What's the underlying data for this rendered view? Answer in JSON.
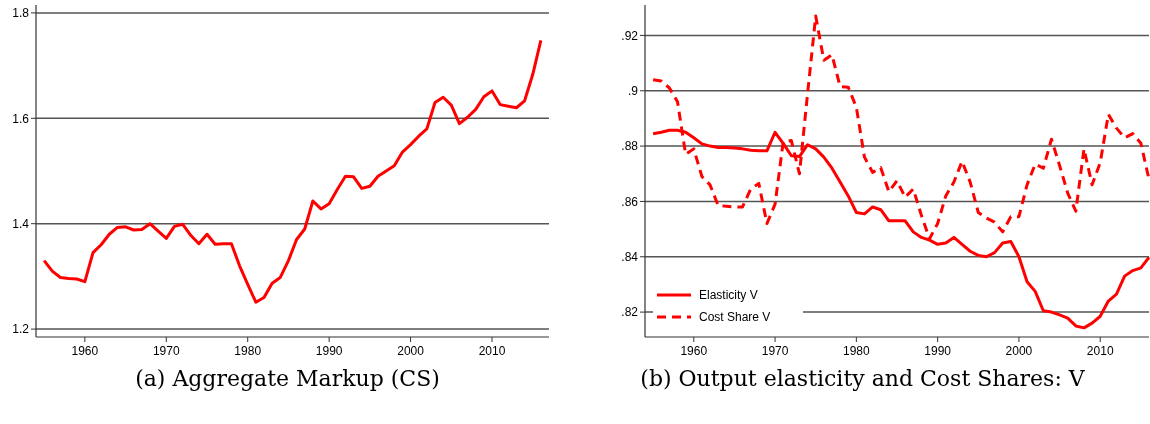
{
  "chart_data": [
    {
      "type": "line",
      "title": "(a) Aggregate Markup (CS)",
      "x": [
        1955,
        1956,
        1957,
        1958,
        1959,
        1960,
        1961,
        1962,
        1963,
        1964,
        1965,
        1966,
        1967,
        1968,
        1969,
        1970,
        1971,
        1972,
        1973,
        1974,
        1975,
        1976,
        1977,
        1978,
        1979,
        1980,
        1981,
        1982,
        1983,
        1984,
        1985,
        1986,
        1987,
        1988,
        1989,
        1990,
        1991,
        1992,
        1993,
        1994,
        1995,
        1996,
        1997,
        1998,
        1999,
        2000,
        2001,
        2002,
        2003,
        2004,
        2005,
        2006,
        2007,
        2008,
        2009,
        2010,
        2011,
        2012,
        2013,
        2014,
        2015,
        2016
      ],
      "series": [
        {
          "color": "#ff0000",
          "line_style": "solid",
          "values": [
            1.33,
            1.31,
            1.298,
            1.296,
            1.295,
            1.29,
            1.345,
            1.36,
            1.38,
            1.393,
            1.394,
            1.388,
            1.389,
            1.4,
            1.386,
            1.372,
            1.395,
            1.399,
            1.378,
            1.362,
            1.38,
            1.361,
            1.362,
            1.362,
            1.32,
            1.285,
            1.251,
            1.26,
            1.287,
            1.298,
            1.33,
            1.37,
            1.39,
            1.443,
            1.428,
            1.438,
            1.465,
            1.49,
            1.489,
            1.467,
            1.471,
            1.49,
            1.5,
            1.51,
            1.536,
            1.55,
            1.566,
            1.58,
            1.63,
            1.64,
            1.625,
            1.59,
            1.602,
            1.617,
            1.641,
            1.652,
            1.626,
            1.623,
            1.62,
            1.633,
            1.683,
            1.748
          ]
        }
      ],
      "xlim": [
        1954,
        2017
      ],
      "xticks": [
        1960,
        1970,
        1980,
        1990,
        2000,
        2010
      ],
      "ylim": [
        1.185,
        1.815
      ],
      "yticks": [
        1.2,
        1.4,
        1.6,
        1.8
      ],
      "grid": "y",
      "legend": false
    },
    {
      "type": "line",
      "title": "(b) Output elasticity and Cost Shares: V",
      "x": [
        1955,
        1956,
        1957,
        1958,
        1959,
        1960,
        1961,
        1962,
        1963,
        1964,
        1965,
        1966,
        1967,
        1968,
        1969,
        1970,
        1971,
        1972,
        1973,
        1974,
        1975,
        1976,
        1977,
        1978,
        1979,
        1980,
        1981,
        1982,
        1983,
        1984,
        1985,
        1986,
        1987,
        1988,
        1989,
        1990,
        1991,
        1992,
        1993,
        1994,
        1995,
        1996,
        1997,
        1998,
        1999,
        2000,
        2001,
        2002,
        2003,
        2004,
        2005,
        2006,
        2007,
        2008,
        2009,
        2010,
        2011,
        2012,
        2013,
        2014,
        2015,
        2016
      ],
      "series": [
        {
          "name": "Elasticity V",
          "color": "#ff0000",
          "line_style": "solid",
          "values": [
            0.8845,
            0.885,
            0.8857,
            0.8857,
            0.885,
            0.883,
            0.8808,
            0.88,
            0.8795,
            0.8795,
            0.8793,
            0.879,
            0.8785,
            0.8783,
            0.8783,
            0.885,
            0.881,
            0.8765,
            0.8762,
            0.8805,
            0.879,
            0.876,
            0.872,
            0.867,
            0.862,
            0.856,
            0.8555,
            0.858,
            0.857,
            0.853,
            0.853,
            0.853,
            0.849,
            0.847,
            0.846,
            0.8445,
            0.845,
            0.847,
            0.8445,
            0.842,
            0.8405,
            0.84,
            0.8415,
            0.845,
            0.8455,
            0.84,
            0.831,
            0.8275,
            0.8205,
            0.82,
            0.819,
            0.8178,
            0.815,
            0.8143,
            0.816,
            0.8185,
            0.824,
            0.8265,
            0.833,
            0.835,
            0.836,
            0.8398
          ]
        },
        {
          "name": "Cost Share V",
          "color": "#ff0000",
          "line_style": "dashed",
          "values": [
            0.904,
            0.9035,
            0.901,
            0.896,
            0.877,
            0.879,
            0.869,
            0.866,
            0.8585,
            0.8583,
            0.858,
            0.858,
            0.8645,
            0.8665,
            0.852,
            0.859,
            0.8815,
            0.882,
            0.87,
            0.899,
            0.927,
            0.911,
            0.913,
            0.9015,
            0.9013,
            0.894,
            0.876,
            0.8705,
            0.8722,
            0.8635,
            0.8675,
            0.8615,
            0.8645,
            0.855,
            0.8465,
            0.852,
            0.862,
            0.867,
            0.8745,
            0.867,
            0.856,
            0.854,
            0.8525,
            0.849,
            0.8545,
            0.8545,
            0.866,
            0.8735,
            0.872,
            0.8825,
            0.873,
            0.863,
            0.8565,
            0.879,
            0.866,
            0.874,
            0.8915,
            0.8865,
            0.883,
            0.8845,
            0.881,
            0.868
          ]
        }
      ],
      "xlim": [
        1954,
        2016
      ],
      "xticks": [
        1960,
        1970,
        1980,
        1990,
        2000,
        2010
      ],
      "ylim": [
        0.811,
        0.931
      ],
      "yticks": [
        {
          "value": 0.82,
          "label": ".82"
        },
        {
          "value": 0.84,
          "label": ".84"
        },
        {
          "value": 0.86,
          "label": ".86"
        },
        {
          "value": 0.88,
          "label": ".88"
        },
        {
          "value": 0.9,
          "label": ".9"
        },
        {
          "value": 0.92,
          "label": ".92"
        }
      ],
      "grid": "y",
      "legend": "bottom left"
    }
  ]
}
